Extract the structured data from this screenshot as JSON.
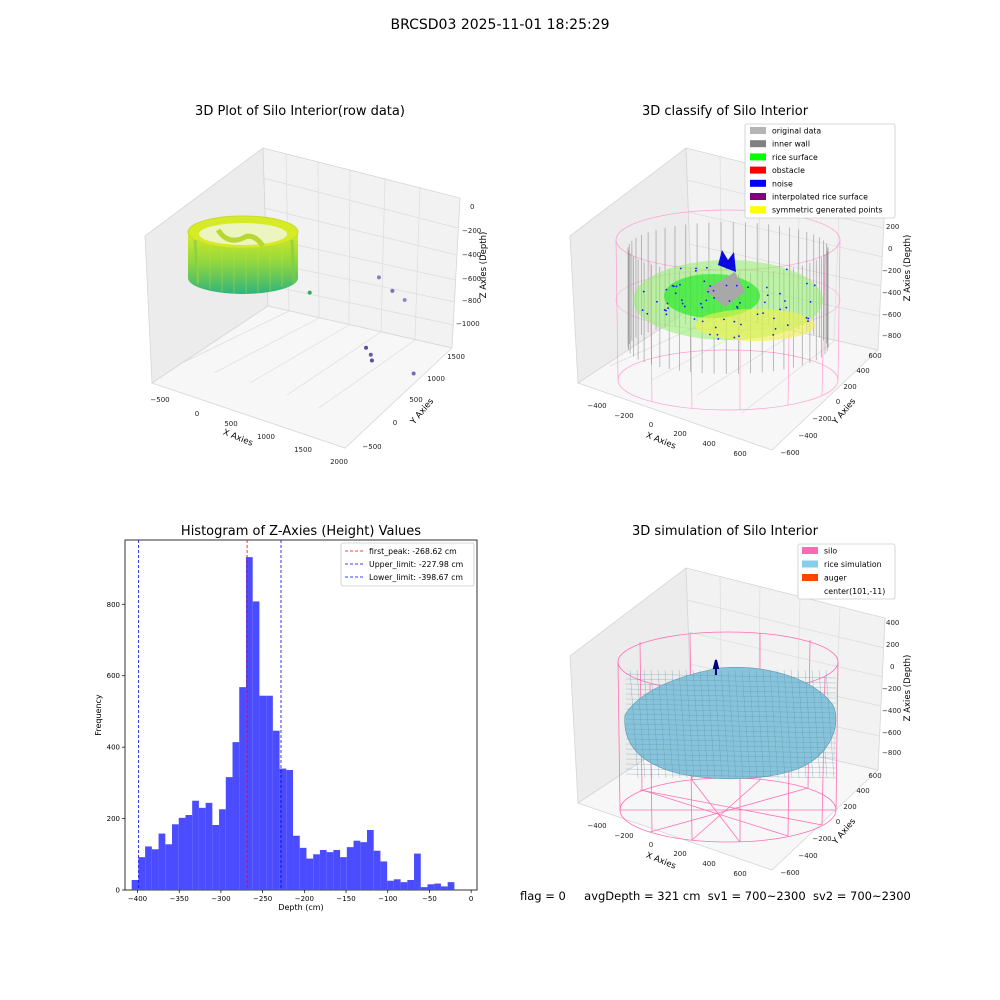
{
  "figure": {
    "suptitle": "BRCSD03 2025-11-01 18:25:29",
    "status": {
      "flag": "flag = 0",
      "avg_depth": "avgDepth = 321 cm",
      "sv1": "sv1 = 700~2300",
      "sv2": "sv2 = 700~2300"
    }
  },
  "chart_data": [
    {
      "type": "scatter",
      "title": "3D Plot of Silo Interior(row data)",
      "xlabel": "X Axies",
      "ylabel": "Y Axies",
      "zlabel": "Z Axies (Depth)",
      "xticks": [
        "−500",
        "0",
        "500",
        "1000",
        "1500",
        "2000"
      ],
      "yticks": [
        "−500",
        "0",
        "500",
        "1000",
        "1500"
      ],
      "zticks": [
        "0",
        "−200",
        "−400",
        "−600",
        "−800",
        "−1000"
      ],
      "xlim": [
        -650,
        2000
      ],
      "ylim": [
        -650,
        1650
      ],
      "zlim": [
        -1100,
        0
      ],
      "colormap": "viridis",
      "outlier_points": [
        {
          "x": 1150,
          "y": 1250,
          "z": -500
        },
        {
          "x": 1300,
          "y": 1300,
          "z": -580
        },
        {
          "x": 1400,
          "y": 1400,
          "z": -650
        },
        {
          "x": 1250,
          "y": 850,
          "z": -880
        },
        {
          "x": 1350,
          "y": 800,
          "z": -900
        },
        {
          "x": 1400,
          "y": 750,
          "z": -920
        },
        {
          "x": 1800,
          "y": 1000,
          "z": -1000
        },
        {
          "x": 650,
          "y": 600,
          "z": -540
        }
      ]
    },
    {
      "type": "scatter",
      "title": "3D classify of Silo Interior",
      "xlabel": "X Axies",
      "ylabel": "Y Axies",
      "zlabel": "Z Axies (Depth)",
      "xticks": [
        "−400",
        "−200",
        "0",
        "200",
        "400",
        "600"
      ],
      "yticks": [
        "−600",
        "−400",
        "−200",
        "0",
        "200",
        "400",
        "600"
      ],
      "zticks": [
        "200",
        "0",
        "−200",
        "−400",
        "−600",
        "−800"
      ],
      "legend_position": "top-right",
      "legend": [
        {
          "label": "original data",
          "color": "#b4b4b4"
        },
        {
          "label": "inner wall",
          "color": "#808080"
        },
        {
          "label": "rice surface",
          "color": "#00ff00"
        },
        {
          "label": "obstacle",
          "color": "#ff0000"
        },
        {
          "label": "noise",
          "color": "#0000ff"
        },
        {
          "label": "interpolated rice surface",
          "color": "#800080"
        },
        {
          "label": "symmetric generated points",
          "color": "#ffff00"
        }
      ]
    },
    {
      "type": "bar",
      "title": "Histogram of Z-Axies (Height) Values",
      "xlabel": "Depth (cm)",
      "ylabel": "Frequency",
      "xlim": [
        -415,
        7
      ],
      "ylim": [
        0,
        980
      ],
      "xticks": [
        -400,
        -350,
        -300,
        -250,
        -200,
        -150,
        -100,
        -50,
        0
      ],
      "yticks": [
        0,
        200,
        400,
        600,
        800
      ],
      "bin_width": 8.06,
      "bin_start": -407,
      "bar_color": "#4b4bff",
      "values": [
        28,
        92,
        122,
        114,
        158,
        128,
        184,
        202,
        210,
        250,
        230,
        244,
        182,
        226,
        316,
        414,
        568,
        932,
        808,
        544,
        544,
        446,
        340,
        336,
        152,
        118,
        88,
        100,
        112,
        106,
        112,
        92,
        120,
        138,
        134,
        168,
        110,
        80,
        26,
        30,
        22,
        28,
        102,
        8,
        16,
        18,
        10,
        22
      ],
      "vlines": [
        {
          "label": "first_peak: -268.62 cm",
          "x": -268.62,
          "color": "#ff0000"
        },
        {
          "label": "Upper_limit: -227.98 cm",
          "x": -227.98,
          "color": "#0000ff"
        },
        {
          "label": "Lower_limit: -398.67 cm",
          "x": -398.67,
          "color": "#0000ff"
        }
      ],
      "legend_position": "top-right"
    },
    {
      "type": "scatter",
      "title": "3D simulation of Silo Interior",
      "xlabel": "X Axies",
      "ylabel": "Y Axies",
      "zlabel": "Z Axies (Depth)",
      "xticks": [
        "−400",
        "−200",
        "0",
        "200",
        "400",
        "600"
      ],
      "yticks": [
        "−600",
        "−400",
        "−200",
        "0",
        "200",
        "400",
        "600"
      ],
      "zticks": [
        "400",
        "200",
        "0",
        "−200",
        "−400",
        "−600",
        "−800"
      ],
      "legend_position": "top-right",
      "legend": [
        {
          "label": "silo",
          "color": "#ff69b4"
        },
        {
          "label": "rice simulation",
          "color": "#87ceeb"
        },
        {
          "label": "auger",
          "color": "#ff4500"
        },
        {
          "label": "center(101,-11)",
          "color": "#ffffff"
        }
      ]
    }
  ]
}
